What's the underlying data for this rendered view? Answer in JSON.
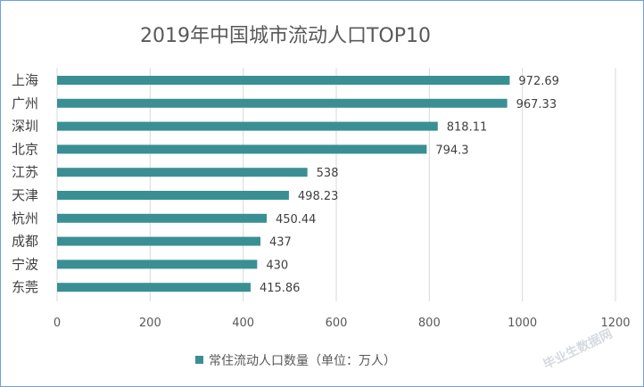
{
  "chart_data": {
    "type": "bar",
    "orientation": "horizontal",
    "title": "2019年中国城市流动人口TOP10",
    "categories": [
      "上海",
      "广州",
      "深圳",
      "北京",
      "江苏",
      "天津",
      "杭州",
      "成都",
      "宁波",
      "东莞"
    ],
    "series": [
      {
        "name": "常住流动人口数量（单位：万人）",
        "values": [
          972.69,
          967.33,
          818.11,
          794.3,
          538,
          498.23,
          450.44,
          437,
          430,
          415.86
        ],
        "labels": [
          "972.69",
          "967.33",
          "818.11",
          "794.3",
          "538",
          "498.23",
          "450.44",
          "437",
          "430",
          "415.86"
        ],
        "color": "#3a8f94"
      }
    ],
    "xlim": [
      0,
      1200
    ],
    "xticks": [
      "0",
      "200",
      "400",
      "600",
      "800",
      "1000",
      "1200"
    ],
    "grid": "vertical",
    "legend_position": "bottom"
  },
  "watermark": "毕业生数据网"
}
